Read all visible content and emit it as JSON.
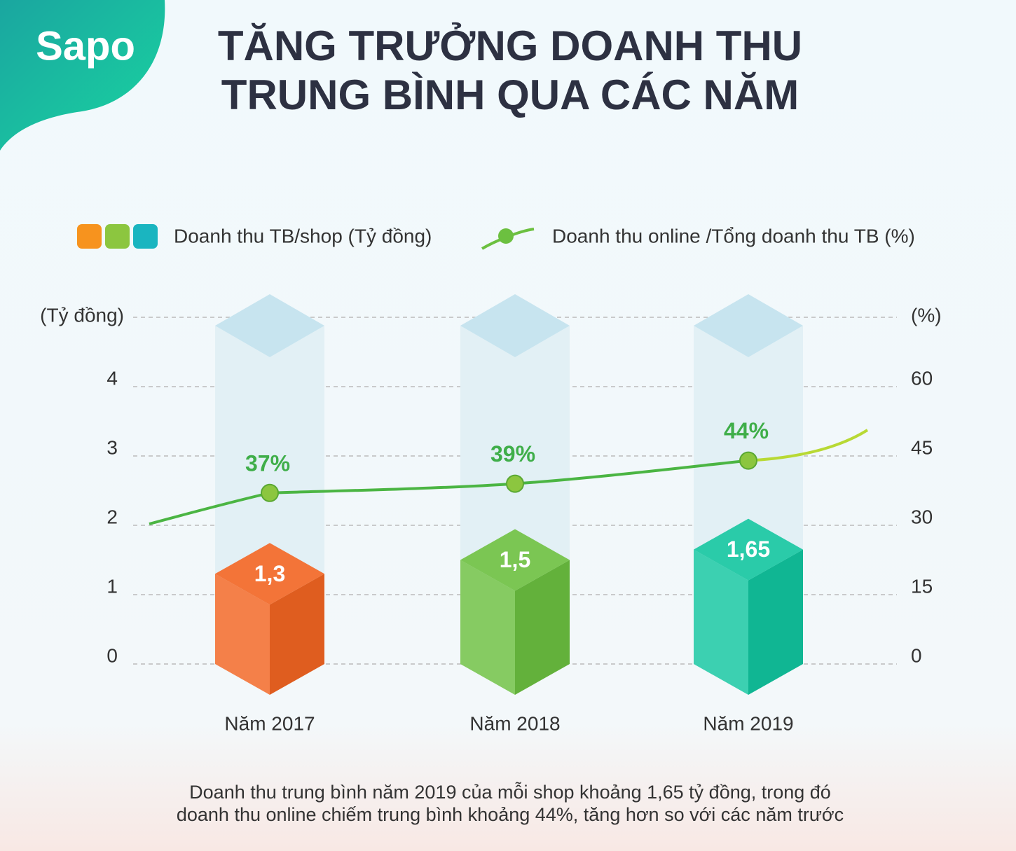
{
  "logo": "Sapo",
  "chart_data": {
    "type": "bar-line",
    "title": [
      "TĂNG TRƯỞNG DOANH THU",
      "TRUNG BÌNH QUA CÁC NĂM"
    ],
    "categories": [
      "Năm 2017",
      "Năm 2018",
      "Năm 2019"
    ],
    "series": [
      {
        "name": "Doanh thu TB/shop (Tỷ đồng)",
        "type": "bar",
        "colors": [
          "#f26522",
          "#6cc040",
          "#12c6a0"
        ],
        "values": [
          1.3,
          1.5,
          1.65
        ],
        "value_labels": [
          "1,3",
          "1,5",
          "1,65"
        ]
      },
      {
        "name": "Doanh thu online /Tổng doanh thu TB (%)",
        "type": "line",
        "axis": "y2",
        "color": "#4bb543",
        "values": [
          37,
          39,
          44
        ],
        "value_labels": [
          "37%",
          "39%",
          "44%"
        ]
      }
    ],
    "ylabel": "(Tỷ đồng)",
    "y2label": "(%)",
    "ylim": [
      0,
      5
    ],
    "yticks": [
      0,
      1,
      2,
      3,
      4
    ],
    "y2lim": [
      0,
      75
    ],
    "y2ticks": [
      0,
      15,
      30,
      45,
      60
    ],
    "grid": true,
    "note": [
      "Doanh thu trung bình năm 2019 của mỗi shop khoảng 1,65 tỷ đồng, trong đó",
      "doanh thu online chiếm trung bình khoảng 44%, tăng hơn so với các năm trước"
    ]
  }
}
